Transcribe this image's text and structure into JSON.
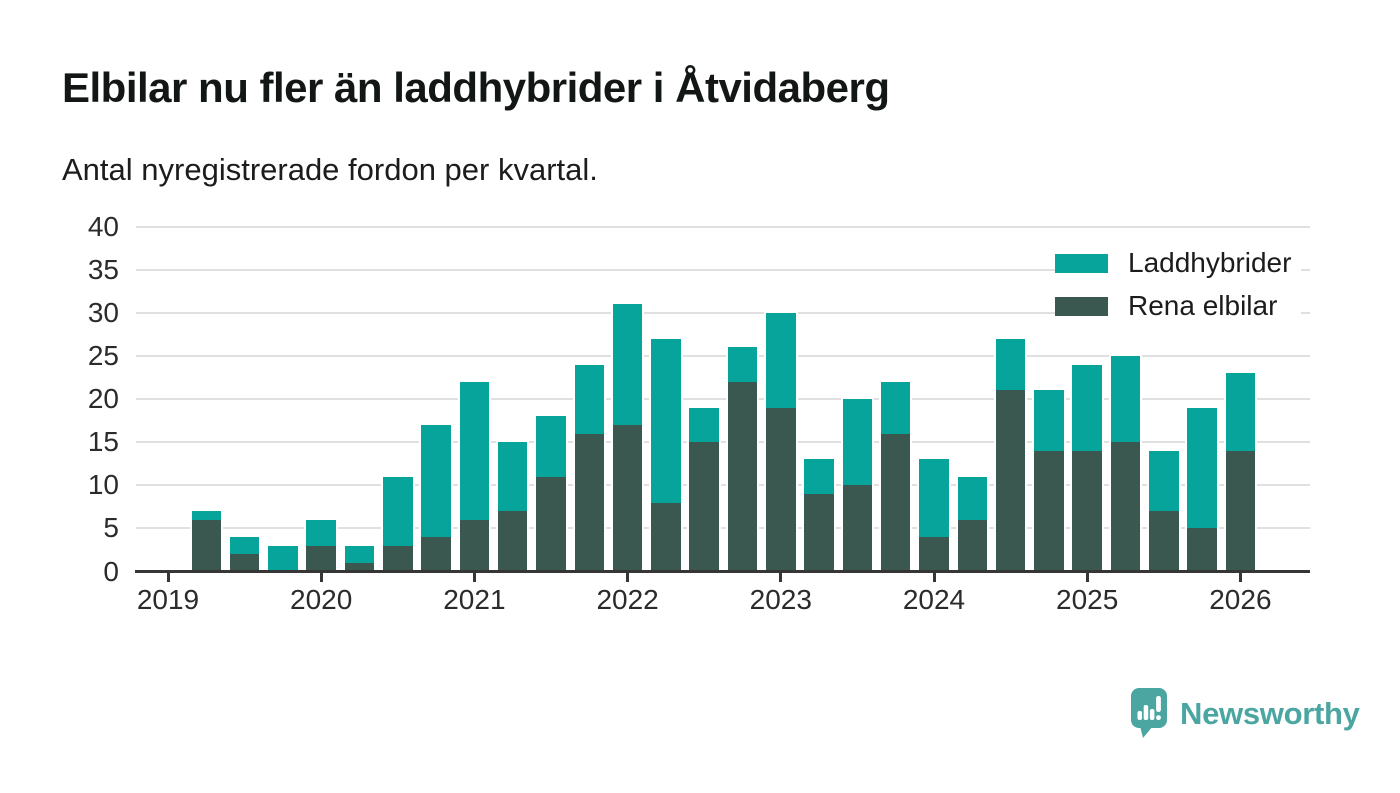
{
  "header": {
    "title": "Elbilar nu fler än laddhybrider i Åtvidaberg",
    "subtitle": "Antal nyregistrerade fordon per kvartal."
  },
  "chart_data": {
    "type": "bar",
    "stacked": true,
    "title": "Elbilar nu fler än laddhybrider i Åtvidaberg",
    "subtitle": "Antal nyregistrerade fordon per kvartal.",
    "categories": [
      "2019 Q1",
      "2019 Q2",
      "2019 Q3",
      "2019 Q4",
      "2020 Q1",
      "2020 Q2",
      "2020 Q3",
      "2020 Q4",
      "2021 Q1",
      "2021 Q2",
      "2021 Q3",
      "2021 Q4",
      "2022 Q1",
      "2022 Q2",
      "2022 Q3",
      "2022 Q4",
      "2023 Q1",
      "2023 Q2",
      "2023 Q3",
      "2023 Q4",
      "2024 Q1",
      "2024 Q2",
      "2024 Q3",
      "2024 Q4",
      "2025 Q1",
      "2025 Q2",
      "2025 Q3",
      "2025 Q4",
      "2026 Q1"
    ],
    "series": [
      {
        "name": "Laddhybrider",
        "color": "#06a49a",
        "stack_position": "top",
        "values": [
          0,
          1,
          2,
          3,
          3,
          2,
          8,
          13,
          16,
          8,
          7,
          8,
          14,
          19,
          4,
          4,
          11,
          4,
          10,
          6,
          9,
          5,
          6,
          7,
          10,
          10,
          7,
          14,
          9
        ]
      },
      {
        "name": "Rena elbilar",
        "color": "#3a584f",
        "stack_position": "bottom",
        "values": [
          0,
          6,
          2,
          0,
          3,
          1,
          3,
          4,
          6,
          7,
          11,
          16,
          17,
          8,
          15,
          22,
          19,
          9,
          10,
          16,
          4,
          6,
          21,
          14,
          14,
          15,
          7,
          5,
          14
        ]
      }
    ],
    "totals": [
      0,
      7,
      4,
      3,
      6,
      3,
      11,
      17,
      22,
      15,
      18,
      24,
      31,
      27,
      19,
      26,
      30,
      13,
      20,
      22,
      13,
      11,
      27,
      21,
      24,
      25,
      14,
      19,
      23
    ],
    "xlabel": "",
    "ylabel": "",
    "ylim": [
      0,
      40
    ],
    "yticks": [
      0,
      5,
      10,
      15,
      20,
      25,
      30,
      35,
      40
    ],
    "x_tick_labels": [
      "2019",
      "2020",
      "2021",
      "2022",
      "2023",
      "2024",
      "2025",
      "2026"
    ],
    "grid": true,
    "gridline_color": "#e0e0e0",
    "axis_color": "#363636",
    "legend_position": "top-right"
  },
  "footer": {
    "brand": "Newsworthy",
    "brand_color": "#4ba6a1",
    "logo_icon": "speech-bubble-bar-chart-icon"
  }
}
